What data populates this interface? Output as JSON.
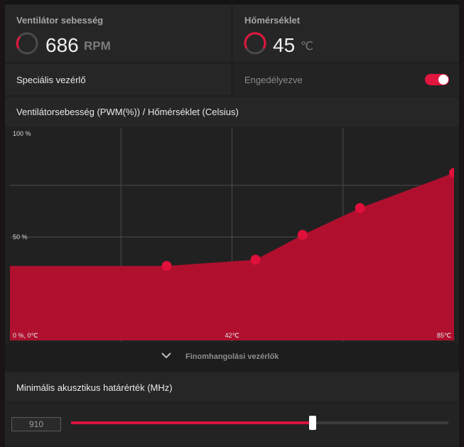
{
  "stats": {
    "fan": {
      "label": "Ventilátor sebesség",
      "value": "686",
      "unit": "RPM"
    },
    "temp": {
      "label": "Hőmérséklet",
      "value": "45",
      "unit": "℃"
    }
  },
  "special": {
    "label": "Speciális vezérlő",
    "state_label": "Engedélyezve",
    "enabled": true
  },
  "chart_header": "Ventilátorsebesség (PWM(%)) / Hőmérséklet (Celsius)",
  "chart_data": {
    "type": "area",
    "xlim": [
      0,
      85
    ],
    "ylim": [
      0,
      100
    ],
    "grid": true,
    "y_tick_labels": [
      "100 %",
      "50 %"
    ],
    "x_tick_labels": [
      "0 %, 0℃",
      "42℃",
      "85℃"
    ],
    "series": [
      {
        "x": [
          0,
          30,
          47,
          56,
          67,
          85
        ],
        "values": [
          36,
          36,
          39,
          51,
          64,
          81
        ]
      }
    ],
    "color": "#b0102e",
    "point_color": "#e0103a"
  },
  "finetune": {
    "label": "Finomhangolási vezérlők",
    "icon": "chevron-down-icon"
  },
  "acoustic": {
    "label": "Minimális akusztikus határérték (MHz)",
    "value": "910",
    "level": 0.64
  }
}
